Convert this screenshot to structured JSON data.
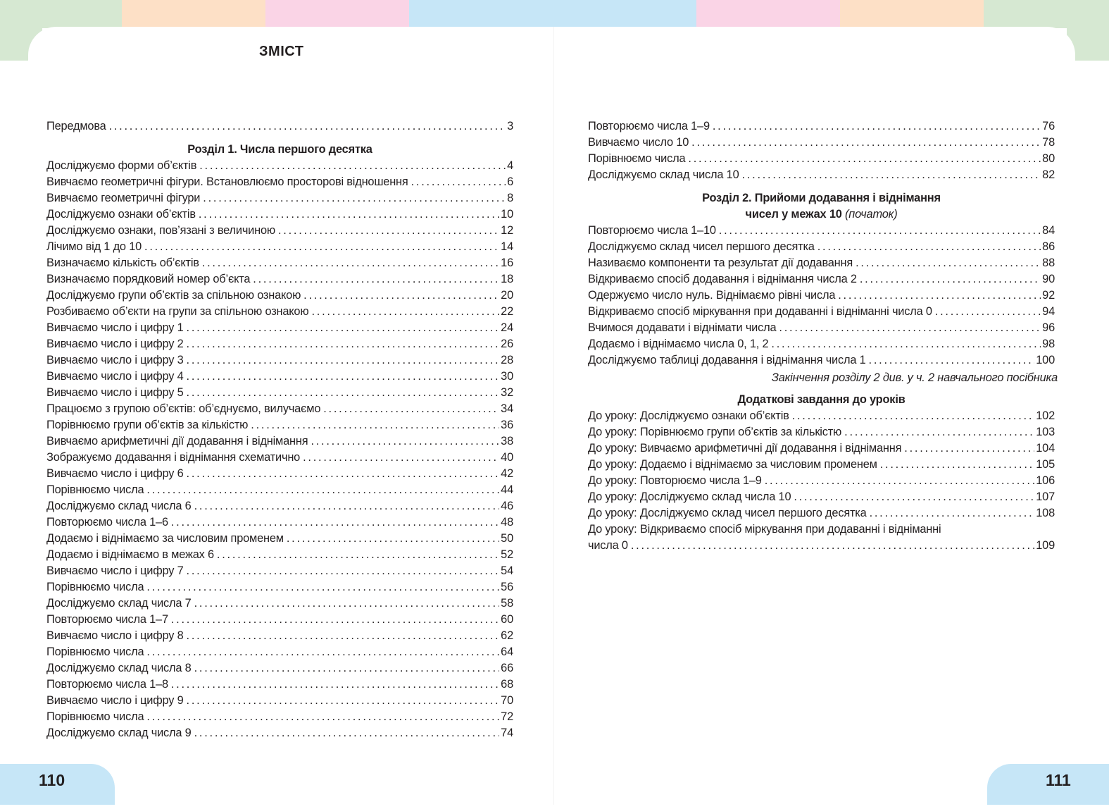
{
  "colors": {
    "green": "#d6e8d2",
    "peach": "#fde0c6",
    "pink": "#fad4e6",
    "blue": "#c6e6f7"
  },
  "title": "ЗМІСТ",
  "left": {
    "intro": {
      "title": "Передмова",
      "page": "3"
    },
    "section1_heading": "Розділ 1. Числа першого десятка",
    "items": [
      {
        "title": "Досліджуємо форми об’єктів",
        "page": "4"
      },
      {
        "title": "Вивчаємо геометричні фігури. Встановлюємо просторові відношення",
        "page": "6"
      },
      {
        "title": "Вивчаємо геометричні фігури",
        "page": "8"
      },
      {
        "title": "Досліджуємо ознаки об’єктів",
        "page": "10"
      },
      {
        "title": "Досліджуємо ознаки, пов’язані з величиною",
        "page": "12"
      },
      {
        "title": "Лічимо від 1 до 10",
        "page": "14"
      },
      {
        "title": "Визначаємо кількість об’єктів",
        "page": "16"
      },
      {
        "title": "Визначаємо порядковий номер об’єкта",
        "page": "18"
      },
      {
        "title": "Досліджуємо групи об’єктів за спільною ознакою",
        "page": "20"
      },
      {
        "title": "Розбиваємо об’єкти на групи за спільною ознакою",
        "page": "22"
      },
      {
        "title": "Вивчаємо число і цифру 1",
        "page": "24"
      },
      {
        "title": "Вивчаємо число і цифру 2",
        "page": "26"
      },
      {
        "title": "Вивчаємо число і цифру 3",
        "page": "28"
      },
      {
        "title": "Вивчаємо число і цифру 4",
        "page": "30"
      },
      {
        "title": "Вивчаємо число і цифру 5",
        "page": "32"
      },
      {
        "title": "Працюємо з групою об’єктів: об’єднуємо, вилучаємо",
        "page": "34"
      },
      {
        "title": "Порівнюємо групи об’єктів за кількістю",
        "page": "36"
      },
      {
        "title": "Вивчаємо арифметичні дії додавання і віднімання",
        "page": "38"
      },
      {
        "title": "Зображуємо додавання і віднімання схематично",
        "page": "40"
      },
      {
        "title": "Вивчаємо число і цифру 6",
        "page": "42"
      },
      {
        "title": "Порівнюємо числа",
        "page": "44"
      },
      {
        "title": "Досліджуємо склад числа 6",
        "page": "46"
      },
      {
        "title": "Повторюємо числа 1–6",
        "page": "48"
      },
      {
        "title": "Додаємо і віднімаємо за числовим променем",
        "page": "50"
      },
      {
        "title": "Додаємо і віднімаємо в межах 6",
        "page": "52"
      },
      {
        "title": "Вивчаємо число і цифру 7",
        "page": "54"
      },
      {
        "title": "Порівнюємо числа",
        "page": "56"
      },
      {
        "title": "Досліджуємо склад числа 7",
        "page": "58"
      },
      {
        "title": "Повторюємо числа 1–7",
        "page": "60"
      },
      {
        "title": "Вивчаємо число і цифру 8",
        "page": "62"
      },
      {
        "title": "Порівнюємо числа",
        "page": "64"
      },
      {
        "title": "Досліджуємо склад числа 8",
        "page": "66"
      },
      {
        "title": "Повторюємо числа 1–8",
        "page": "68"
      },
      {
        "title": "Вивчаємо число і цифру 9",
        "page": "70"
      },
      {
        "title": "Порівнюємо числа",
        "page": "72"
      },
      {
        "title": "Досліджуємо склад числа 9",
        "page": "74"
      }
    ]
  },
  "right": {
    "items_top": [
      {
        "title": "Повторюємо числа 1–9",
        "page": "76"
      },
      {
        "title": "Вивчаємо число 10",
        "page": "78"
      },
      {
        "title": "Порівнюємо числа",
        "page": "80"
      },
      {
        "title": "Досліджуємо склад числа 10",
        "page": "82"
      }
    ],
    "section2_heading_line1": "Розділ 2. Прийоми додавання і віднімання",
    "section2_heading_line2": "чисел у межах 10",
    "section2_heading_note": "(початок)",
    "section2_items": [
      {
        "title": "Повторюємо числа 1–10",
        "page": "84"
      },
      {
        "title": "Досліджуємо склад чисел першого десятка",
        "page": "86"
      },
      {
        "title": "Називаємо компоненти та результат дії додавання",
        "page": "88"
      },
      {
        "title": "Відкриваємо спосіб додавання і віднімання числа 2",
        "page": "90"
      },
      {
        "title": "Одержуємо число нуль. Віднімаємо рівні числа",
        "page": "92"
      },
      {
        "title": "Відкриваємо спосіб міркування при додаванні і відніманні числа 0",
        "page": "94"
      },
      {
        "title": "Вчимося додавати і віднімати числа",
        "page": "96"
      },
      {
        "title": "Додаємо і віднімаємо числа 0, 1, 2",
        "page": "98"
      },
      {
        "title": "Досліджуємо таблиці додавання і віднімання числа 1",
        "page": "100"
      }
    ],
    "section2_end_note": "Закінчення розділу 2 див. у ч. 2 навчального посібника",
    "extra_heading": "Додаткові завдання до уроків",
    "extra_items": [
      {
        "title": "До уроку: Досліджуємо ознаки об’єктів",
        "page": "102"
      },
      {
        "title": "До уроку: Порівнюємо групи об’єктів за кількістю",
        "page": "103"
      },
      {
        "title": "До уроку: Вивчаємо арифметичні дії додавання і віднімання",
        "page": "104"
      },
      {
        "title": "До уроку: Додаємо і віднімаємо за числовим променем",
        "page": "105"
      },
      {
        "title": "До уроку: Повторюємо числа 1–9",
        "page": "106"
      },
      {
        "title": "До уроку: Досліджуємо склад числа 10",
        "page": "107"
      },
      {
        "title": "До уроку: Досліджуємо склад чисел першого десятка",
        "page": "108"
      }
    ],
    "extra_last_line1": "До уроку: Відкриваємо спосіб міркування при додаванні і відніманні",
    "extra_last_line2": "числа 0",
    "extra_last_page": "109"
  },
  "page_numbers": {
    "left": "110",
    "right": "111"
  }
}
